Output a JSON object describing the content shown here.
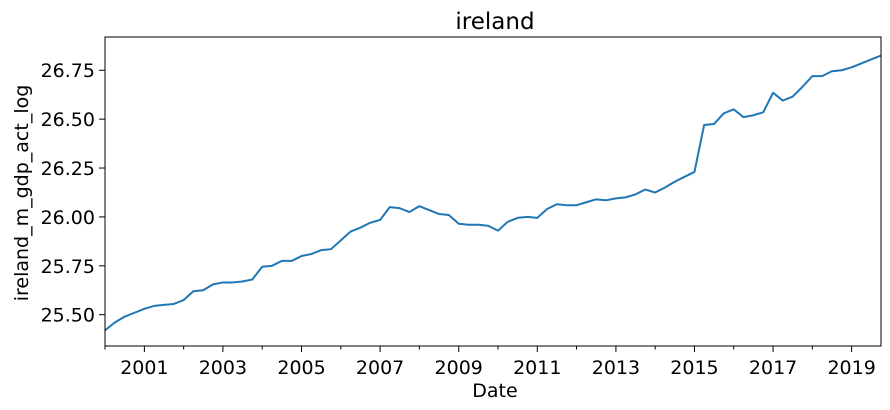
{
  "chart_data": {
    "type": "line",
    "title": "ireland",
    "xlabel": "Date",
    "ylabel": "ireland_m_gdp_act_log",
    "xlim": [
      "2000-01-01",
      "2019-10-01"
    ],
    "ylim": [
      25.34,
      26.92
    ],
    "x_ticks": [
      "2001",
      "2003",
      "2005",
      "2007",
      "2009",
      "2011",
      "2013",
      "2015",
      "2017",
      "2019"
    ],
    "y_ticks": [
      "25.50",
      "25.75",
      "26.00",
      "26.25",
      "26.50",
      "26.75"
    ],
    "grid": false,
    "line_color": "#1f77b4",
    "series": [
      {
        "x": [
          "2000-01-01",
          "2000-04-01",
          "2000-07-01",
          "2000-10-01",
          "2001-01-01",
          "2001-04-01",
          "2001-07-01",
          "2001-10-01",
          "2002-01-01",
          "2002-04-01",
          "2002-07-01",
          "2002-10-01",
          "2003-01-01",
          "2003-04-01",
          "2003-07-01",
          "2003-10-01",
          "2004-01-01",
          "2004-04-01",
          "2004-07-01",
          "2004-10-01",
          "2005-01-01",
          "2005-04-01",
          "2005-07-01",
          "2005-10-01",
          "2006-01-01",
          "2006-04-01",
          "2006-07-01",
          "2006-10-01",
          "2007-01-01",
          "2007-04-01",
          "2007-07-01",
          "2007-10-01",
          "2008-01-01",
          "2008-04-01",
          "2008-07-01",
          "2008-10-01",
          "2009-01-01",
          "2009-04-01",
          "2009-07-01",
          "2009-10-01",
          "2010-01-01",
          "2010-04-01",
          "2010-07-01",
          "2010-10-01",
          "2011-01-01",
          "2011-04-01",
          "2011-07-01",
          "2011-10-01",
          "2012-01-01",
          "2012-04-01",
          "2012-07-01",
          "2012-10-01",
          "2013-01-01",
          "2013-04-01",
          "2013-07-01",
          "2013-10-01",
          "2014-01-01",
          "2014-04-01",
          "2014-07-01",
          "2014-10-01",
          "2015-01-01",
          "2015-04-01",
          "2015-07-01",
          "2015-10-01",
          "2016-01-01",
          "2016-04-01",
          "2016-07-01",
          "2016-10-01",
          "2017-01-01",
          "2017-04-01",
          "2017-07-01",
          "2017-10-01",
          "2018-01-01",
          "2018-04-01",
          "2018-07-01",
          "2018-10-01",
          "2019-01-01",
          "2019-04-01",
          "2019-07-01",
          "2019-10-01"
        ],
        "y": [
          25.42,
          25.46,
          25.49,
          25.51,
          25.53,
          25.545,
          25.55,
          25.555,
          25.575,
          25.62,
          25.625,
          25.655,
          25.665,
          25.665,
          25.67,
          25.68,
          25.745,
          25.75,
          25.775,
          25.775,
          25.8,
          25.81,
          25.83,
          25.835,
          25.88,
          25.925,
          25.945,
          25.97,
          25.985,
          26.05,
          26.045,
          26.025,
          26.055,
          26.035,
          26.015,
          26.01,
          25.965,
          25.96,
          25.96,
          25.955,
          25.93,
          25.975,
          25.995,
          26.0,
          25.995,
          26.04,
          26.065,
          26.06,
          26.06,
          26.075,
          26.09,
          26.085,
          26.095,
          26.1,
          26.115,
          26.14,
          26.125,
          26.15,
          26.18,
          26.205,
          26.23,
          26.47,
          26.475,
          26.53,
          26.55,
          26.51,
          26.52,
          26.535,
          26.635,
          26.595,
          26.615,
          26.665,
          26.72,
          26.72,
          26.745,
          26.75,
          26.765,
          26.785,
          26.805,
          26.825
        ]
      }
    ]
  }
}
